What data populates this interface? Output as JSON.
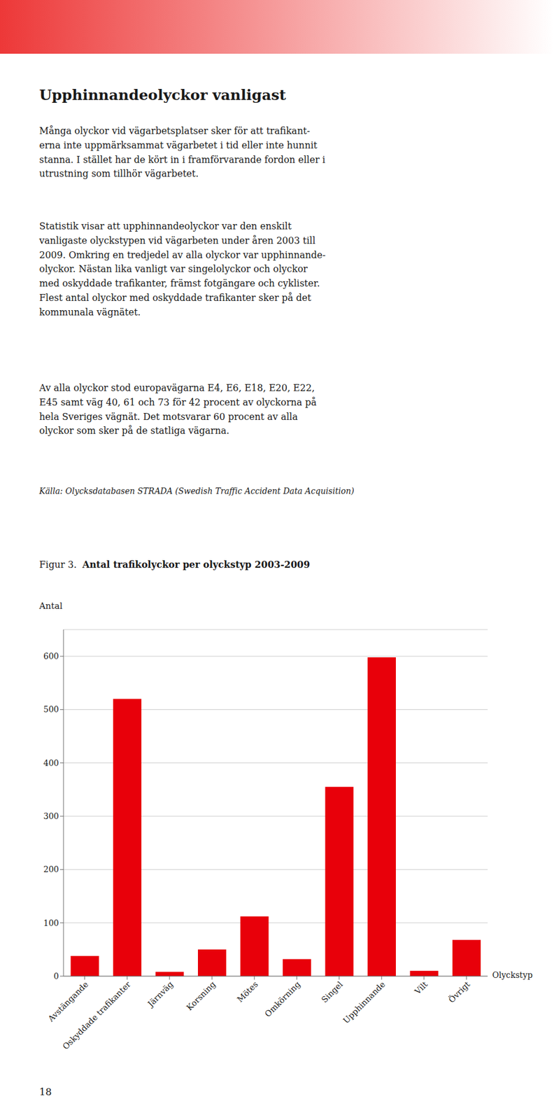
{
  "chart_data": {
    "type": "bar",
    "title": "Upphinnandeolyckor vanligast",
    "subtitle": "Antal trafikolyckor per olyckstyp 2003-2009",
    "annotations": [
      "Många olyckor vid vägarbetsplatser sker för att trafikant-\nerna inte uppmärksammat vägarbetet i tid eller inte hunnit\nstanna. I stället har de kört in i framförvarande fordon eller i\nutrustning som tillhör vägarbetet.",
      "Statistik visar att upphinnandeolyckor var den enskilt\nvanligaste olyckstypen vid vägarbeten under åren 2003 till\n2009. Omkring en tredjedel av alla olyckor var upphinnande-\nolyckor. Nästan lika vanligt var singelolyckor och olyckor\nmed oskyddade trafikanter, främst fotgängare och cyklister.\nFlest antal olyckor med oskyddade trafikanter sker på det\nkommunala vägnätet.",
      "Av alla olyckor stod europavägarna E4, E6, E18, E20, E22,\nE45 samt väg 40, 61 och 73 för 42 procent av olyckorna på\nhela Sveriges vägnät. Det motsvarar 60 procent av alla\nolyckor som sker på de statliga vägarna.",
      "Källa: Olycksdatabasen STRADA (Swedish Traffic Accident Data Acquisition)",
      "Figur 3.",
      "18"
    ],
    "x_label": "Olyckstyp",
    "y_label": "Antal",
    "categories": [
      "Avstängande",
      "Oskyddade trafikanter",
      "Järnväg",
      "Korsning",
      "Mötes",
      "Omkörning",
      "Singel",
      "Upphinnande",
      "Vilt",
      "Övrigt"
    ],
    "values": [
      38,
      520,
      8,
      50,
      112,
      32,
      355,
      598,
      10,
      68
    ],
    "color": "#e8000a",
    "ylim": [
      0,
      650
    ],
    "yticks": [
      0,
      100,
      200,
      300,
      400,
      500,
      600
    ],
    "grid": true
  }
}
